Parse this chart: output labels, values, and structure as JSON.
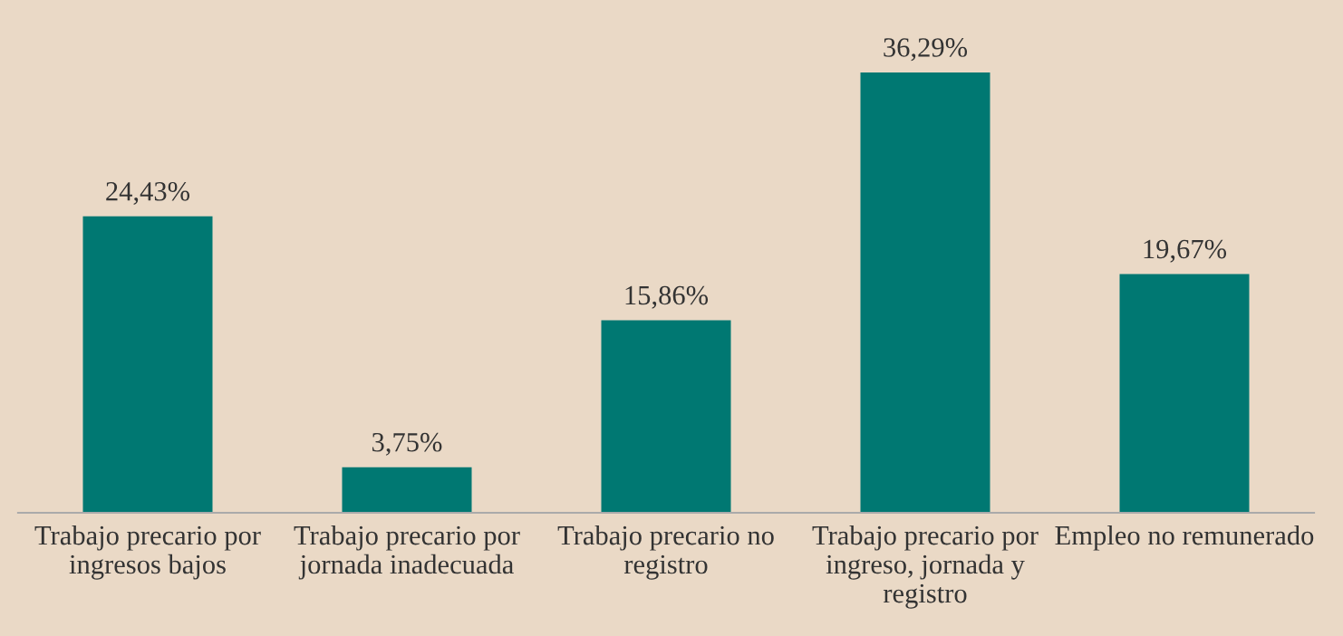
{
  "chart_data": {
    "type": "bar",
    "categories": [
      "Trabajo precario por\ningresos bajos",
      "Trabajo precario por\njornada inadecuada",
      "Trabajo precario no\nregistro",
      "Trabajo precario por\ningreso, jornada y\nregistro",
      "Empleo no remunerado"
    ],
    "values": [
      24.43,
      3.75,
      15.86,
      36.29,
      19.67
    ],
    "value_labels": [
      "24,43%",
      "3,75%",
      "15,86%",
      "36,29%",
      "19,67%"
    ],
    "color": "#007872",
    "grid": false,
    "legend": false
  }
}
